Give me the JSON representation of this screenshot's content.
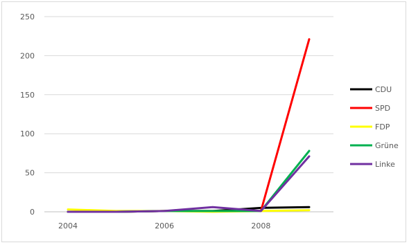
{
  "chart_data": {
    "type": "line",
    "title": "",
    "xlabel": "",
    "ylabel": "",
    "x": [
      2004,
      2005,
      2006,
      2007,
      2008,
      2009
    ],
    "xticks": [
      "2004",
      "2006",
      "2008"
    ],
    "xlim": [
      2004,
      2009
    ],
    "yticks": [
      0,
      50,
      100,
      150,
      200,
      250
    ],
    "ylim": [
      0,
      250
    ],
    "grid": true,
    "legend": "right",
    "series": [
      {
        "name": "CDU",
        "color": "#000000",
        "values": [
          0,
          0,
          1,
          1,
          5,
          6
        ]
      },
      {
        "name": "SPD",
        "color": "#ff0000",
        "values": [
          0,
          0,
          1,
          1,
          1,
          221
        ]
      },
      {
        "name": "FDP",
        "color": "#ffff00",
        "values": [
          3,
          1,
          1,
          0,
          1,
          2
        ]
      },
      {
        "name": "Grüne",
        "color": "#00b050",
        "values": [
          0,
          0,
          1,
          1,
          1,
          78
        ]
      },
      {
        "name": "Linke",
        "color": "#7030a0",
        "values": [
          0,
          0,
          1,
          6,
          1,
          71
        ]
      }
    ]
  }
}
